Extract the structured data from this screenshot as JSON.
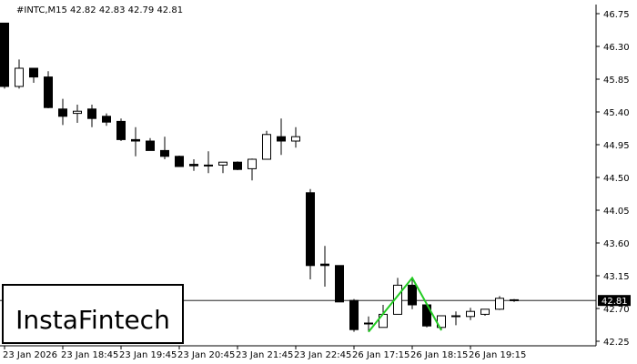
{
  "chart_data": {
    "type": "candlestick",
    "title": "#INTC,M15  42.82 42.83 42.79 42.81",
    "watermark": "InstaFintech",
    "categories": [
      "23 Jan 2026",
      null,
      null,
      null,
      "23 Jan 18:45",
      null,
      null,
      null,
      "23 Jan 19:45",
      null,
      null,
      null,
      "23 Jan 20:45",
      null,
      null,
      null,
      "23 Jan 21:45",
      null,
      null,
      null,
      "23 Jan 22:45",
      null,
      null,
      null,
      "26 Jan 17:15",
      null,
      null,
      null,
      "26 Jan 18:15",
      null,
      null,
      null,
      "26 Jan 19:15",
      null,
      null,
      null
    ],
    "open": [
      46.62,
      45.75,
      46.0,
      45.88,
      45.44,
      45.38,
      45.44,
      45.34,
      45.27,
      45.02,
      45.0,
      44.87,
      44.79,
      44.68,
      44.67,
      44.67,
      44.71,
      44.62,
      44.75,
      45.06,
      45.0,
      44.29,
      43.31,
      43.29,
      42.81,
      42.5,
      42.44,
      42.62,
      43.02,
      42.75,
      42.44,
      42.6,
      42.59,
      42.62,
      42.69,
      42.82
    ],
    "high": [
      46.62,
      46.12,
      46.0,
      45.96,
      45.58,
      45.5,
      45.5,
      45.38,
      45.31,
      45.19,
      45.04,
      45.06,
      44.8,
      44.75,
      44.86,
      44.71,
      44.72,
      44.76,
      45.14,
      45.31,
      45.19,
      44.34,
      43.56,
      43.29,
      42.83,
      42.59,
      42.75,
      43.12,
      43.12,
      42.75,
      42.6,
      42.66,
      42.71,
      42.69,
      42.87,
      42.83
    ],
    "low": [
      45.72,
      45.72,
      45.8,
      45.45,
      45.22,
      45.25,
      45.19,
      45.21,
      45.0,
      44.79,
      44.87,
      44.75,
      44.65,
      44.59,
      44.56,
      44.56,
      44.6,
      44.46,
      44.75,
      44.81,
      44.91,
      43.1,
      43.0,
      42.79,
      42.38,
      42.38,
      42.44,
      42.62,
      42.69,
      42.44,
      42.4,
      42.47,
      42.54,
      42.6,
      42.68,
      42.79
    ],
    "close": [
      45.75,
      46.0,
      45.88,
      45.46,
      45.34,
      45.41,
      45.31,
      45.26,
      45.02,
      45.0,
      44.87,
      44.79,
      44.65,
      44.66,
      44.66,
      44.71,
      44.61,
      44.75,
      45.09,
      45.0,
      45.06,
      43.29,
      43.29,
      42.79,
      42.41,
      42.5,
      42.62,
      43.02,
      42.75,
      42.46,
      42.6,
      42.59,
      42.66,
      42.69,
      42.84,
      42.81
    ],
    "price_line": 42.81,
    "ylim": [
      42.25,
      46.75
    ],
    "yticks": [
      46.75,
      {
        "value": 46.3,
        "label": "46.30"
      },
      45.85,
      {
        "value": 45.4,
        "label": "45.40"
      },
      44.95,
      {
        "value": 44.5,
        "label": "44.50"
      },
      44.05,
      {
        "value": 43.6,
        "label": "43.60"
      },
      43.15,
      {
        "value": 42.7,
        "label": "42.70"
      },
      42.25
    ],
    "up_color": "#ffffff",
    "down_color": "#000000",
    "pattern_color": "#22cc22"
  }
}
